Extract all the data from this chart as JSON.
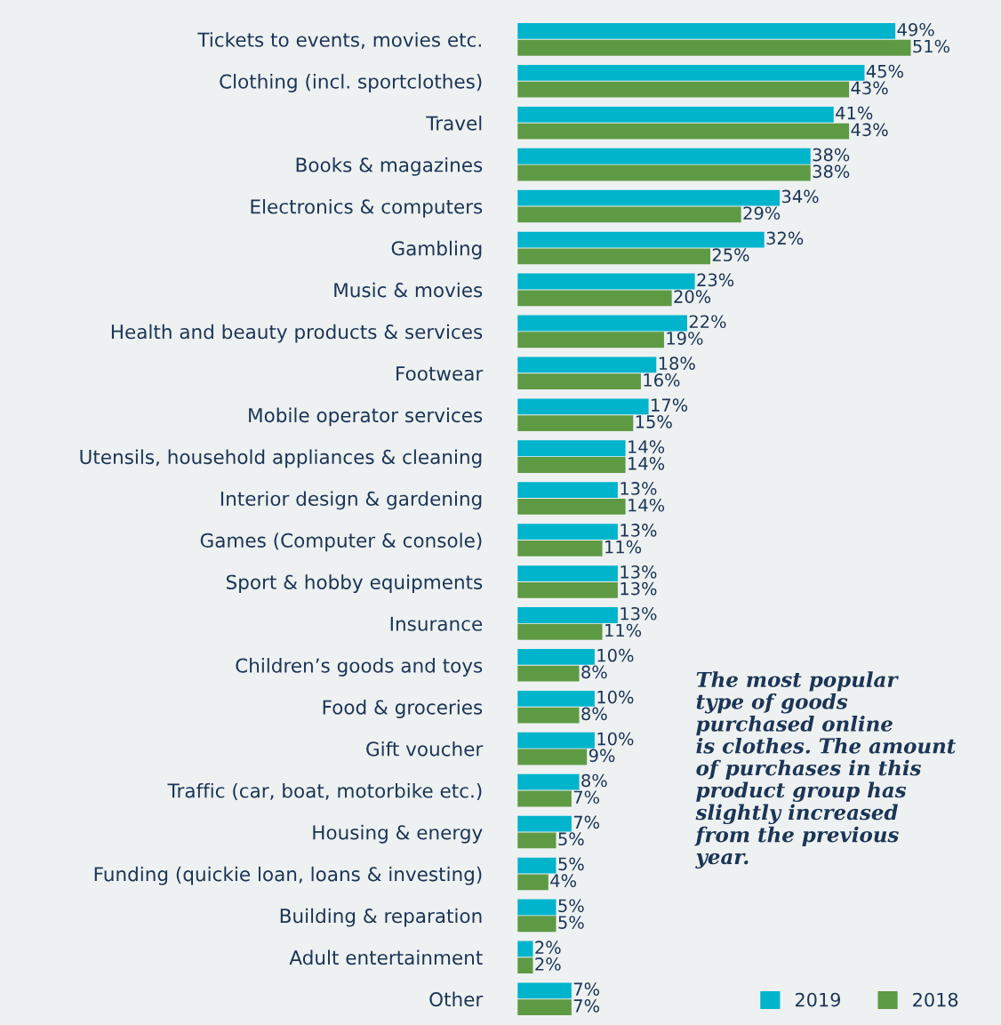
{
  "chart_data": {
    "type": "bar",
    "orientation": "horizontal",
    "categories": [
      "Tickets to events, movies etc.",
      "Clothing (incl. sportclothes)",
      "Travel",
      "Books & magazines",
      "Electronics & computers",
      "Gambling",
      "Music & movies",
      "Health and beauty products & services",
      "Footwear",
      "Mobile operator services",
      "Utensils, household appliances & cleaning",
      "Interior design & gardening",
      "Games (Computer & console)",
      "Sport & hobby equipments",
      "Insurance",
      "Children’s goods and toys",
      "Food & groceries",
      "Gift voucher",
      "Traffic (car, boat, motorbike etc.)",
      "Housing & energy",
      "Funding (quickie loan, loans & investing)",
      "Building & reparation",
      "Adult entertainment",
      "Other"
    ],
    "series": [
      {
        "name": "2019",
        "color": "#00b4cc",
        "values": [
          49,
          45,
          41,
          38,
          34,
          32,
          23,
          22,
          18,
          17,
          14,
          13,
          13,
          13,
          13,
          10,
          10,
          10,
          8,
          7,
          5,
          5,
          2,
          7
        ],
        "value_labels": [
          "49%",
          "45%",
          "41%",
          "38%",
          "34%",
          "32%",
          "23%",
          "22%",
          "18%",
          "17%",
          "14%",
          "13%",
          "13%",
          "13%",
          "13%",
          "10%",
          "10%",
          "10%",
          "8%",
          "7%",
          "5%",
          "5%",
          "2%",
          "7%"
        ]
      },
      {
        "name": "2018",
        "color": "#5e9a44",
        "values": [
          51,
          43,
          43,
          38,
          29,
          25,
          20,
          19,
          16,
          15,
          14,
          14,
          11,
          13,
          11,
          8,
          8,
          9,
          7,
          5,
          4,
          5,
          2,
          7
        ],
        "value_labels": [
          "51%",
          "43%",
          "43%",
          "38%",
          "29%",
          "25%",
          "20%",
          "19%",
          "16%",
          "15%",
          "14%",
          "14%",
          "11%",
          "13%",
          "11%",
          "8%",
          "8%",
          "9%",
          "7%",
          "5%",
          "4%",
          "5%",
          "2%",
          "7%"
        ]
      }
    ],
    "legend": "bottom right",
    "annotations": [
      "The most popular\ntype of goods\npurchased online\nis clothes. The amount\nof purchases in this\nproduct group has\nslightly increased\nfrom the previous\nyear."
    ]
  }
}
